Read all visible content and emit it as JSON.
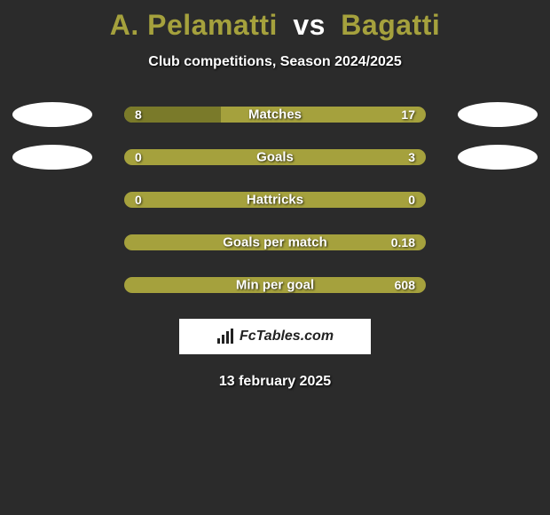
{
  "title": {
    "player_left": "A. Pelamatti",
    "vs": "vs",
    "player_right": "Bagatti"
  },
  "subtitle": "Club competitions, Season 2024/2025",
  "colors": {
    "bar_base": "#a5a13d",
    "bar_dark": "#7a7a2a",
    "background": "#2b2b2b",
    "text": "#ffffff",
    "badge": "#ffffff"
  },
  "stats": [
    {
      "label": "Matches",
      "left_val": "8",
      "right_val": "17",
      "left_pct": 32,
      "right_pct": 0,
      "show_badges": true
    },
    {
      "label": "Goals",
      "left_val": "0",
      "right_val": "3",
      "left_pct": 0,
      "right_pct": 0,
      "show_badges": true
    },
    {
      "label": "Hattricks",
      "left_val": "0",
      "right_val": "0",
      "left_pct": 0,
      "right_pct": 0,
      "show_badges": false
    },
    {
      "label": "Goals per match",
      "left_val": "",
      "right_val": "0.18",
      "left_pct": 0,
      "right_pct": 0,
      "show_badges": false
    },
    {
      "label": "Min per goal",
      "left_val": "",
      "right_val": "608",
      "left_pct": 0,
      "right_pct": 0,
      "show_badges": false
    }
  ],
  "logo_text": "FcTables.com",
  "date": "13 february 2025"
}
